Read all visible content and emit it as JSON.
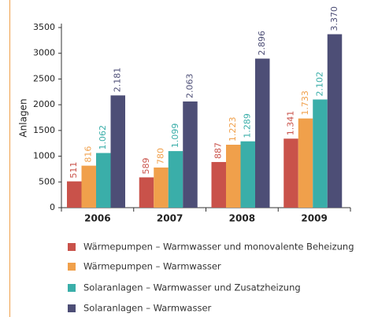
{
  "chart_data": {
    "type": "bar",
    "y_label": "Anlagen",
    "categories": [
      "2006",
      "2007",
      "2008",
      "2009"
    ],
    "series": [
      {
        "name": "Wärmepumpen – Warmwasser und monovalente Beheizung",
        "color": "#c9524a",
        "values": [
          511,
          589,
          887,
          1341
        ],
        "value_labels": [
          "511",
          "589",
          "887",
          "1.341"
        ]
      },
      {
        "name": "Wärmepumpen – Warmwasser",
        "color": "#f0a04b",
        "values": [
          816,
          780,
          1223,
          1733
        ],
        "value_labels": [
          "816",
          "780",
          "1.223",
          "1.733"
        ]
      },
      {
        "name": "Solaranlagen – Warmwasser und Zusatzheizung",
        "color": "#3aaea9",
        "values": [
          1062,
          1099,
          1289,
          2102
        ],
        "value_labels": [
          "1.062",
          "1.099",
          "1.289",
          "2.102"
        ]
      },
      {
        "name": "Solaranlagen – Warmwasser",
        "color": "#4d4e76",
        "values": [
          2181,
          2063,
          2896,
          3370
        ],
        "value_labels": [
          "2.181",
          "2.063",
          "2.896",
          "3.370"
        ]
      }
    ],
    "ylim": [
      0,
      3500
    ],
    "yticks": [
      0,
      500,
      1000,
      1500,
      2000,
      2500,
      3000,
      3500
    ],
    "grid": false
  }
}
